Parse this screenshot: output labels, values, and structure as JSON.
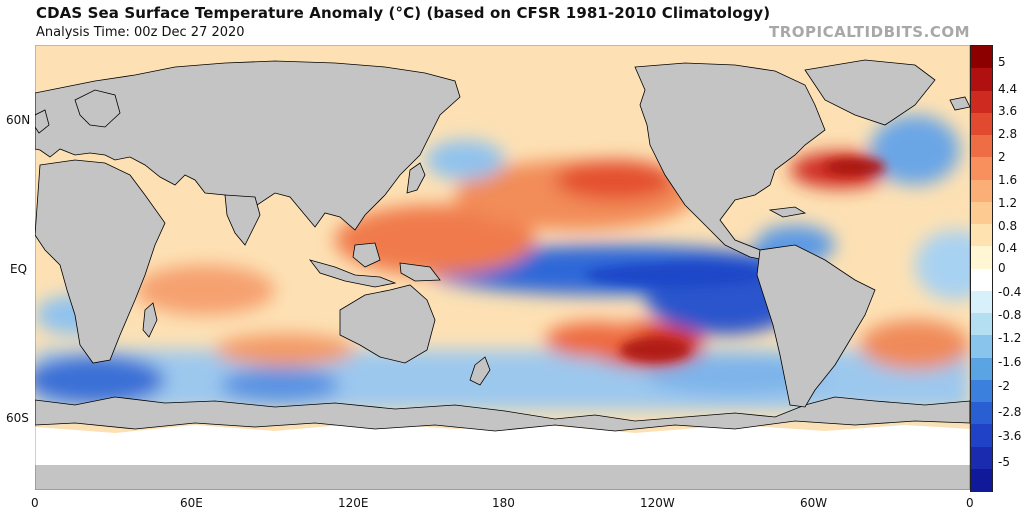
{
  "header": {
    "title": "CDAS Sea Surface Temperature Anomaly (°C) (based on CFSR 1981-2010 Climatology)",
    "analysis_time": "Analysis Time: 00z Dec 27 2020",
    "credit": "TROPICALTIDBITS.COM"
  },
  "axes": {
    "lat_labels": [
      "60N",
      "EQ",
      "60S"
    ],
    "lon_labels": [
      "0",
      "60E",
      "120E",
      "180",
      "120W",
      "60W",
      "0"
    ]
  },
  "colorbar": {
    "labels": [
      "5",
      "4.4",
      "3.6",
      "2.8",
      "2",
      "1.6",
      "1.2",
      "0.8",
      "0.4",
      "0",
      "-0.4",
      "-0.8",
      "-1.2",
      "-1.6",
      "-2",
      "-2.8",
      "-3.6",
      "-5"
    ],
    "colors": [
      "#8c0000",
      "#b01010",
      "#cf2a20",
      "#e24a30",
      "#ef6d44",
      "#f7905c",
      "#fbae76",
      "#fdca92",
      "#fee3b0",
      "#fff6d4",
      "#ffffff",
      "#d8f0fa",
      "#b4def2",
      "#88c4ec",
      "#5aa4e4",
      "#3b80dc",
      "#2a5fd3",
      "#1f42c6",
      "#1a2bb0",
      "#10199a"
    ]
  }
}
